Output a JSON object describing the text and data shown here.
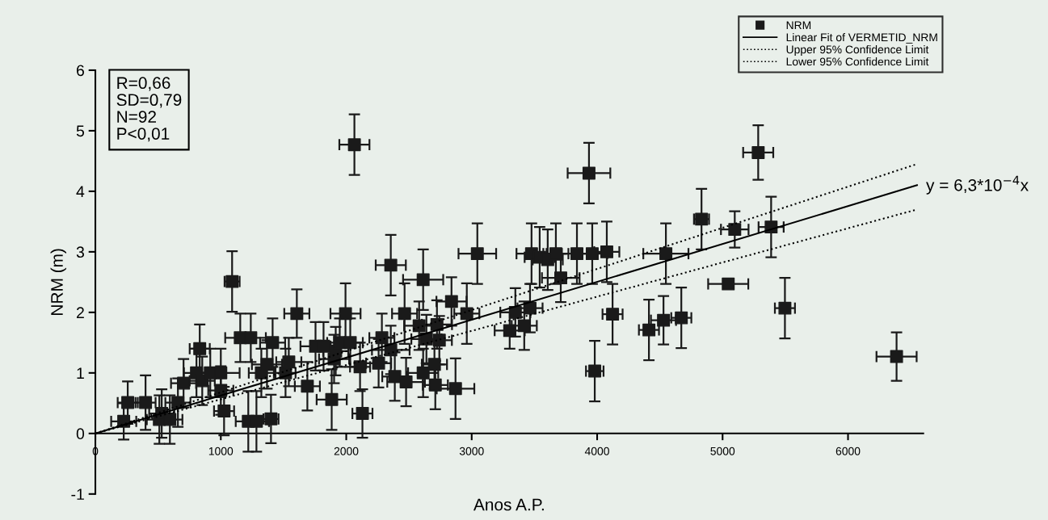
{
  "chart_data": {
    "type": "scatter",
    "xlabel": "Anos A.P.",
    "ylabel": "NRM (m)",
    "xlim": [
      0,
      6600
    ],
    "ylim": [
      -1,
      6
    ],
    "xticks": [
      0,
      1000,
      2000,
      3000,
      4000,
      5000,
      6000
    ],
    "yticks": [
      -1,
      0,
      1,
      2,
      3,
      4,
      5,
      6
    ],
    "grid": false,
    "legend": "top right",
    "series": [
      {
        "name": "NRM",
        "color": "#1a1a1a",
        "marker": "square",
        "x": [
          226,
          258,
          400,
          510,
          529,
          594,
          658,
          703,
          806,
          832,
          852,
          916,
          1000,
          1000,
          1026,
          1090,
          1155,
          1219,
          1239,
          1284,
          1323,
          1368,
          1400,
          1413,
          1516,
          1542,
          1606,
          1690,
          1755,
          1819,
          1884,
          1903,
          1916,
          1948,
          1994,
          2032,
          2065,
          2110,
          2129,
          2258,
          2284,
          2355,
          2355,
          2387,
          2465,
          2477,
          2581,
          2613,
          2613,
          2639,
          2703,
          2710,
          2723,
          2742,
          2839,
          2871,
          2961,
          3045,
          3303,
          3348,
          3419,
          3465,
          3477,
          3542,
          3606,
          3671,
          3710,
          3839,
          3935,
          3961,
          3981,
          4077,
          4123,
          4413,
          4529,
          4548,
          4671,
          4832,
          5045,
          5097,
          5284,
          5387,
          5497,
          6387
        ],
        "values": [
          0.2,
          0.51,
          0.51,
          0.23,
          0.33,
          0.23,
          0.51,
          0.83,
          1.0,
          1.4,
          0.87,
          1.0,
          1.0,
          0.71,
          0.37,
          2.51,
          1.58,
          0.2,
          1.58,
          0.2,
          1.0,
          1.14,
          0.24,
          1.5,
          1.0,
          1.18,
          1.98,
          0.78,
          1.44,
          1.44,
          0.56,
          1.23,
          1.36,
          1.5,
          1.98,
          1.5,
          4.77,
          1.1,
          0.33,
          1.16,
          1.58,
          2.78,
          1.38,
          0.94,
          1.98,
          0.85,
          1.78,
          2.54,
          1.0,
          1.56,
          1.14,
          0.8,
          1.8,
          1.54,
          2.18,
          0.74,
          1.98,
          2.97,
          1.7,
          2.0,
          1.78,
          2.07,
          2.97,
          2.91,
          2.87,
          2.97,
          2.57,
          2.97,
          4.3,
          2.97,
          1.03,
          3.0,
          1.97,
          1.71,
          1.87,
          2.97,
          1.91,
          3.54,
          2.47,
          3.37,
          4.64,
          3.41,
          2.07,
          1.27
        ],
        "errors": [
          0.3,
          0.35,
          0.45,
          0.4,
          0.4,
          0.4,
          0.4,
          0.4,
          0.4,
          0.4,
          0.4,
          0.4,
          0.4,
          0.4,
          0.4,
          0.5,
          0.4,
          0.5,
          0.4,
          0.5,
          0.4,
          0.4,
          0.4,
          0.4,
          0.4,
          0.4,
          0.4,
          0.4,
          0.4,
          0.4,
          0.5,
          0.4,
          0.4,
          0.4,
          0.5,
          0.4,
          0.5,
          0.4,
          0.4,
          0.4,
          0.4,
          0.5,
          0.4,
          0.4,
          0.5,
          0.4,
          0.4,
          0.5,
          0.4,
          0.4,
          0.4,
          0.4,
          0.4,
          0.4,
          0.4,
          0.5,
          0.5,
          0.5,
          0.3,
          0.4,
          0.4,
          0.4,
          0.5,
          0.5,
          0.5,
          0.5,
          0.4,
          0.5,
          0.5,
          0.5,
          0.5,
          0.5,
          0.5,
          0.5,
          0.4,
          0.5,
          0.5,
          0.5,
          null,
          0.3,
          0.45,
          0.5,
          0.5,
          0.4
        ],
        "xerrors": [
          100,
          80,
          80,
          100,
          100,
          100,
          100,
          100,
          100,
          80,
          100,
          120,
          150,
          100,
          80,
          60,
          120,
          100,
          120,
          100,
          100,
          120,
          60,
          100,
          80,
          100,
          100,
          100,
          120,
          100,
          120,
          120,
          100,
          100,
          120,
          100,
          120,
          80,
          80,
          100,
          100,
          120,
          150,
          100,
          100,
          150,
          120,
          160,
          120,
          120,
          100,
          100,
          120,
          100,
          120,
          150,
          100,
          150,
          120,
          120,
          100,
          100,
          120,
          120,
          120,
          100,
          150,
          120,
          170,
          120,
          70,
          100,
          80,
          80,
          100,
          180,
          80,
          60,
          160,
          110,
          120,
          100,
          80,
          160
        ]
      },
      {
        "name": "Linear Fit of VERMETID_NRM",
        "type": "line",
        "color": "#000000",
        "line_style": "solid",
        "x": [
          0,
          6550
        ],
        "values": [
          0,
          4.1
        ]
      },
      {
        "name": "Upper 95% Confidence Limit",
        "type": "line",
        "color": "#000000",
        "line_style": "dotted",
        "x": [
          0,
          6550
        ],
        "values": [
          0,
          4.45
        ]
      },
      {
        "name": "Lower 95% Confidence Limit",
        "type": "line",
        "color": "#000000",
        "line_style": "dotted",
        "x": [
          0,
          6550
        ],
        "values": [
          0,
          3.7
        ]
      }
    ],
    "annotations": [
      "R=0,66\nSD=0,79\nN=92\nP<0,01",
      {
        "text": "y = 6,3*10$^{−4}$x",
        "x": 6550,
        "y": 4.1
      }
    ]
  }
}
